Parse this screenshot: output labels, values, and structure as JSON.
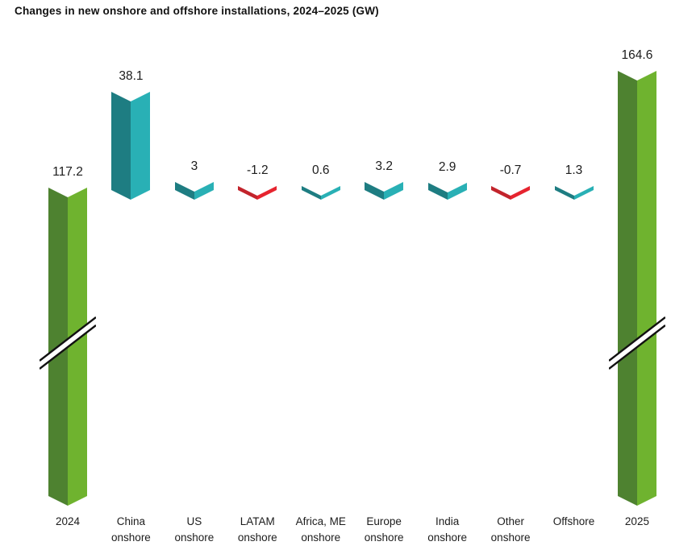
{
  "title": "Changes in new onshore and offshore installations, 2024–2025 (GW)",
  "colors": {
    "total_dark": "#4e8230",
    "total_light": "#6fb32f",
    "increase_dark": "#1e7d82",
    "increase_light": "#29b0b5",
    "decrease_dark": "#c2242c",
    "decrease_light": "#e6242f",
    "text": "#1a1a1a",
    "background": "#ffffff"
  },
  "chart_data": {
    "type": "bar",
    "subtype": "waterfall",
    "unit": "GW",
    "title": "Changes in new onshore and offshore installations, 2024–2025 (GW)",
    "legend": false,
    "grid": false,
    "axis_break_on_total_bars": true,
    "categories": [
      "2024",
      "China onshore",
      "US onshore",
      "LATAM onshore",
      "Africa, ME onshore",
      "Europe onshore",
      "India onshore",
      "Other onshore",
      "Offshore",
      "2025"
    ],
    "values": [
      117.2,
      38.1,
      3,
      -1.2,
      0.6,
      3.2,
      2.9,
      -0.7,
      1.3,
      164.6
    ],
    "bars": [
      {
        "label": "2024",
        "label_line2": "",
        "value": 117.2,
        "display_value": "117.2",
        "kind": "total",
        "axis_break": true
      },
      {
        "label": "China",
        "label_line2": "onshore",
        "value": 38.1,
        "display_value": "38.1",
        "kind": "increase",
        "axis_break": false
      },
      {
        "label": "US",
        "label_line2": "onshore",
        "value": 3,
        "display_value": "3",
        "kind": "increase",
        "axis_break": false
      },
      {
        "label": "LATAM",
        "label_line2": "onshore",
        "value": -1.2,
        "display_value": "-1.2",
        "kind": "decrease",
        "axis_break": false
      },
      {
        "label": "Africa, ME",
        "label_line2": "onshore",
        "value": 0.6,
        "display_value": "0.6",
        "kind": "increase",
        "axis_break": false
      },
      {
        "label": "Europe",
        "label_line2": "onshore",
        "value": 3.2,
        "display_value": "3.2",
        "kind": "increase",
        "axis_break": false
      },
      {
        "label": "India",
        "label_line2": "onshore",
        "value": 2.9,
        "display_value": "2.9",
        "kind": "increase",
        "axis_break": false
      },
      {
        "label": "Other",
        "label_line2": "onshore",
        "value": -0.7,
        "display_value": "-0.7",
        "kind": "decrease",
        "axis_break": false
      },
      {
        "label": "Offshore",
        "label_line2": "",
        "value": 1.3,
        "display_value": "1.3",
        "kind": "increase",
        "axis_break": false
      },
      {
        "label": "2025",
        "label_line2": "",
        "value": 164.6,
        "display_value": "164.6",
        "kind": "total",
        "axis_break": true
      }
    ]
  }
}
